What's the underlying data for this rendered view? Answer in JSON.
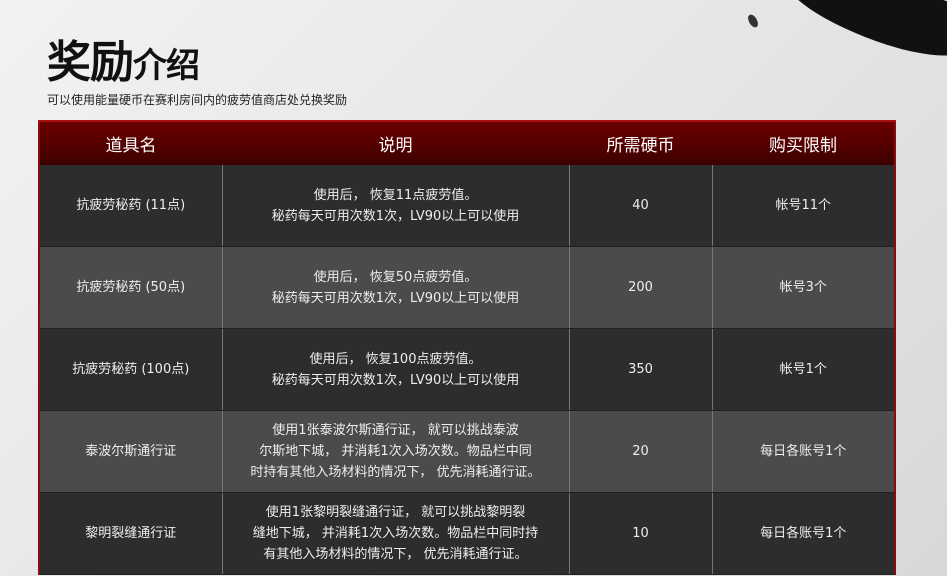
{
  "title_big": "奖励",
  "title_small": "介绍",
  "subtitle": "可以使用能量硬币在赛利房间内的疲劳值商店处兑换奖励",
  "headers": [
    "道具名",
    "说明",
    "所需硬币",
    "购买限制"
  ],
  "rows": [
    {
      "name": "抗疲劳秘药 (11点)",
      "desc": "使用后， 恢复11点疲劳值。\n秘药每天可用次数1次，LV90以上可以使用",
      "coins": "40",
      "limit": "帐号11个"
    },
    {
      "name": "抗疲劳秘药 (50点)",
      "desc": "使用后， 恢复50点疲劳值。\n秘药每天可用次数1次，LV90以上可以使用",
      "coins": "200",
      "limit": "帐号3个"
    },
    {
      "name": "抗疲劳秘药 (100点)",
      "desc": "使用后， 恢复100点疲劳值。\n秘药每天可用次数1次，LV90以上可以使用",
      "coins": "350",
      "limit": "帐号1个"
    },
    {
      "name": "泰波尔斯通行证",
      "desc": "使用1张泰波尔斯通行证， 就可以挑战泰波\n尔斯地下城， 并消耗1次入场次数。物品栏中同\n时持有其他入场材料的情况下， 优先消耗通行证。",
      "coins": "20",
      "limit": "每日各账号1个"
    },
    {
      "name": "黎明裂缝通行证",
      "desc": "使用1张黎明裂缝通行证， 就可以挑战黎明裂\n缝地下城， 并消耗1次入场次数。物品栏中同时持\n有其他入场材料的情况下， 优先消耗通行证。",
      "coins": "10",
      "limit": "每日各账号1个"
    }
  ]
}
